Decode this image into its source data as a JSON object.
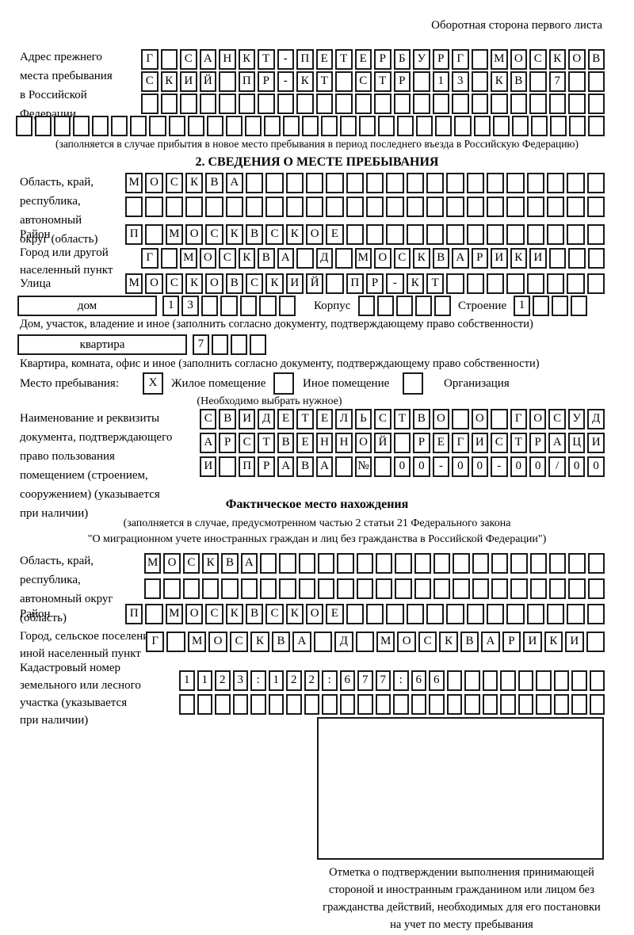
{
  "page": {
    "header_note": "Оборотная сторона первого листа"
  },
  "prev_address": {
    "label": "Адрес прежнего\nместа пребывания\nв Российской\nФедерации",
    "row1": {
      "cells": "Г САНКТ-ПЕТЕРБУРГ МОСКОВ",
      "len": 24
    },
    "row2": {
      "cells": "СКИЙ ПР-КТ СТР 13 КВ 7",
      "len": 24
    },
    "row3": {
      "cells": "",
      "len": 24
    },
    "row4": {
      "cells": "",
      "len": 31
    },
    "note": "(заполняется в случае прибытия в новое место пребывания в период последнего въезда в Российскую Федерацию)"
  },
  "section2": {
    "title": "2. СВЕДЕНИЯ О МЕСТЕ ПРЕБЫВАНИЯ",
    "region": {
      "label": "Область, край,\nреспублика,\nавтономный\nокруг (область)",
      "row1": {
        "cells": "МОСКВА",
        "len": 24
      },
      "row2": {
        "cells": "",
        "len": 24
      }
    },
    "district": {
      "label": "Район",
      "row": {
        "cells": "П МОСКВСКОЕ",
        "len": 24
      }
    },
    "city": {
      "label": "Город или другой\nнаселенный пункт",
      "row": {
        "cells": "Г МОСКВА Д МОСКВАРИКИ",
        "len": 24
      }
    },
    "street": {
      "label": "Улица",
      "row": {
        "cells": "МОСКОВСКИЙ ПР-КТ",
        "len": 24
      }
    },
    "house": {
      "box_label": "дом",
      "row": {
        "cells": "13",
        "len": 7
      },
      "korpus_label": "Корпус",
      "korpus_row": {
        "cells": "",
        "len": 5
      },
      "stroenie_label": "Строение",
      "stroenie_row": {
        "cells": "1",
        "len": 4
      },
      "note": "Дом, участок, владение и иное (заполнить согласно документу, подтверждающему право собственности)"
    },
    "apartment": {
      "box_label": "квартира",
      "row": {
        "cells": "7",
        "len": 4
      },
      "note": "Квартира, комната, офис и иное (заполнить согласно документу, подтверждающему право собственности)"
    },
    "stay_type": {
      "label": "Место пребывания:",
      "options": [
        {
          "label": "Жилое помещение",
          "checked": "X"
        },
        {
          "label": "Иное помещение",
          "checked": ""
        },
        {
          "label": "Организация",
          "checked": ""
        }
      ],
      "note": "(Необходимо выбрать нужное)"
    },
    "document": {
      "label": "Наименование и реквизиты\nдокумента, подтверждающего\nправо пользования\nпомещением (строением,\nсооружением) (указывается\nпри наличии)",
      "row1": {
        "cells": "СВИДЕТЕЛЬСТВО О ГОСУД",
        "len": 21
      },
      "row2": {
        "cells": "АРСТВЕННОЙ РЕГИСТРАЦИ",
        "len": 21
      },
      "row3": {
        "cells": "И ПРАВА № 00-00-00/000",
        "len": 21
      }
    }
  },
  "actual_location": {
    "title": "Фактическое место нахождения",
    "note1": "(заполняется в случае, предусмотренном частью 2 статьи 21 Федерального закона",
    "note2": "\"О миграционном учете иностранных граждан и лиц без гражданства в Российской Федерации\")",
    "region": {
      "label": "Область, край,\nреспублика,\nавтономный округ\n(область)",
      "row1": {
        "cells": "МОСКВА",
        "len": 24
      },
      "row2": {
        "cells": "",
        "len": 24
      }
    },
    "district": {
      "label": "Район",
      "row": {
        "cells": "П МОСКВСКОЕ",
        "len": 24
      }
    },
    "city": {
      "label": "Город, сельское поселение,\nиной населенный пункт",
      "row": {
        "cells": "Г МОСКВА Д МОСКВАРИКИ",
        "len": 22
      }
    },
    "cadastre": {
      "label": "Кадастровый номер\nземельного или лесного\nучастка (указывается\nпри наличии)",
      "row1": {
        "cells": "1123:122:677:66",
        "len": 24
      },
      "row2": {
        "cells": "",
        "len": 24
      }
    },
    "stamp_note": "Отметка о подтверждении выполнения принимающей\nстороной и иностранным гражданином или лицом без\nгражданства действий, необходимых для его постановки\nна учет по месту пребывания"
  }
}
